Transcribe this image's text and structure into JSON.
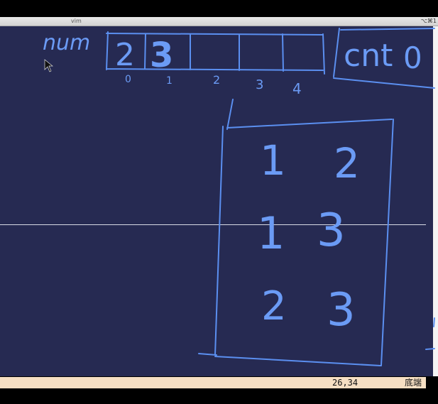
{
  "window": {
    "title": "vim",
    "shortcut": "⌥⌘1"
  },
  "statusline": {
    "position": "26,34",
    "scroll": "底端"
  },
  "annotation": {
    "array_label": "num",
    "cells": [
      "2",
      "3",
      "",
      "",
      ""
    ],
    "indices": [
      "0",
      "1",
      "2",
      "3",
      "4"
    ],
    "counter_label": "cnt",
    "counter_value": "0",
    "pairs": [
      {
        "first": "1",
        "second": "2"
      },
      {
        "first": "1",
        "second": "3"
      },
      {
        "first": "2",
        "second": "3"
      }
    ]
  },
  "colors": {
    "background": "#262a52",
    "ink": "#5b8ff0",
    "statusline": "#f6dfc3"
  }
}
